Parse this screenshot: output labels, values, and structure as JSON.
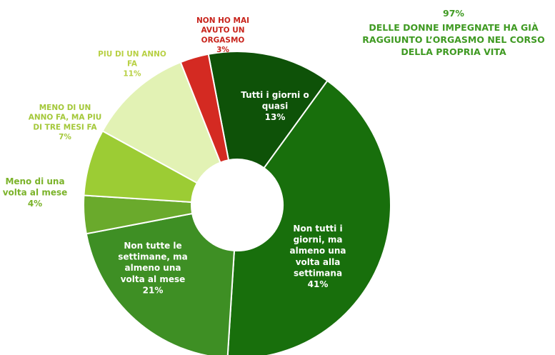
{
  "headline": {
    "percent": "97%",
    "text": "DELLE DONNE IMPEGNATE HA GIÀ RAGGIUNTO L’ORGASMO NEL CORSO DELLA PROPRIA VITA"
  },
  "chart_data": {
    "type": "pie",
    "donut": true,
    "title": "",
    "unit": "%",
    "slices": [
      {
        "label": "Tutti i giorni o quasi",
        "value": 13,
        "value_label": "13%",
        "color": "#0e5208"
      },
      {
        "label": "Non tutti i giorni, ma almeno una volta alla settimana",
        "value": 41,
        "value_label": "41%",
        "color": "#186f0c"
      },
      {
        "label": "Non tutte le settimane, ma almeno una volta al mese",
        "value": 21,
        "value_label": "21%",
        "color": "#3e8f24"
      },
      {
        "label": "Meno di una volta al mese",
        "value": 4,
        "value_label": "4%",
        "color": "#6aaa2c"
      },
      {
        "label": "MENO DI UN ANNO FA, MA PIU DI TRE MESI FA",
        "value": 7,
        "value_label": "7%",
        "color": "#9ccc34"
      },
      {
        "label": "PIU DI UN ANNO FA",
        "value": 11,
        "value_label": "11%",
        "color": "#e2f2b4"
      },
      {
        "label": "NON HO MAI AVUTO UN ORGASMO",
        "value": 3,
        "value_label": "3%",
        "color": "#d42a22"
      }
    ]
  }
}
